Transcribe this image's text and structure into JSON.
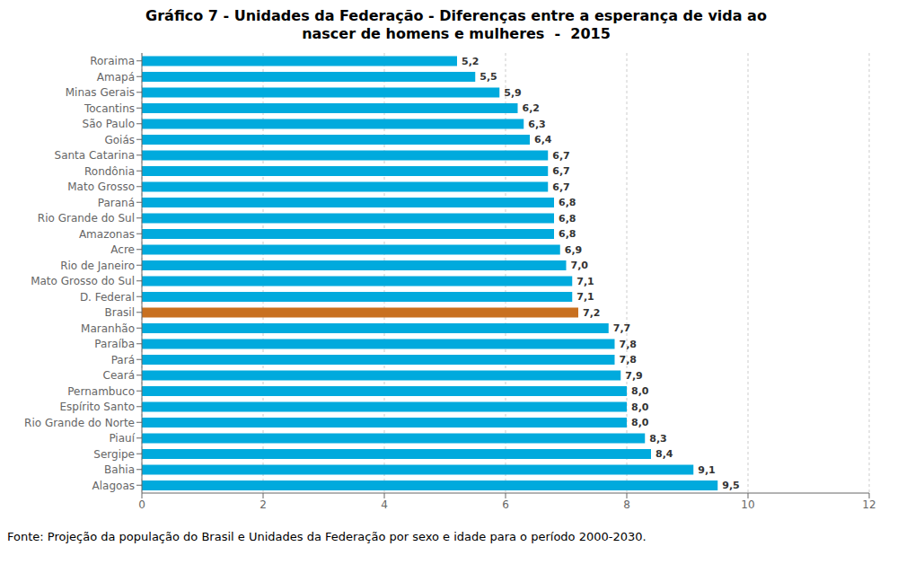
{
  "chart_data": {
    "type": "bar",
    "orientation": "horizontal",
    "title": "Gráfico 7 - Unidades da Federação - Diferenças entre a esperança de vida ao\nnascer de homens e mulheres  -  2015",
    "categories": [
      "Roraima",
      "Amapá",
      "Minas Gerais",
      "Tocantins",
      "São Paulo",
      "Goiás",
      "Santa Catarina",
      "Rondônia",
      "Mato Grosso",
      "Paraná",
      "Rio Grande do Sul",
      "Amazonas",
      "Acre",
      "Rio de Janeiro",
      "Mato Grosso do Sul",
      "D. Federal",
      "Brasil",
      "Maranhão",
      "Paraíba",
      "Pará",
      "Ceará",
      "Pernambuco",
      "Espírito Santo",
      "Rio Grande do Norte",
      "Piauí",
      "Sergipe",
      "Bahia",
      "Alagoas"
    ],
    "values": [
      5.2,
      5.5,
      5.9,
      6.2,
      6.3,
      6.4,
      6.7,
      6.7,
      6.7,
      6.8,
      6.8,
      6.8,
      6.9,
      7.0,
      7.1,
      7.1,
      7.2,
      7.7,
      7.8,
      7.8,
      7.9,
      8.0,
      8.0,
      8.0,
      8.3,
      8.4,
      9.1,
      9.5
    ],
    "value_labels": [
      "5,2",
      "5,5",
      "5,9",
      "6,2",
      "6,3",
      "6,4",
      "6,7",
      "6,7",
      "6,7",
      "6,8",
      "6,8",
      "6,8",
      "6,9",
      "7,0",
      "7,1",
      "7,1",
      "7,2",
      "7,7",
      "7,8",
      "7,8",
      "7,9",
      "8,0",
      "8,0",
      "8,0",
      "8,3",
      "8,4",
      "9,1",
      "9,5"
    ],
    "colors": [
      "#00AADD",
      "#00AADD",
      "#00AADD",
      "#00AADD",
      "#00AADD",
      "#00AADD",
      "#00AADD",
      "#00AADD",
      "#00AADD",
      "#00AADD",
      "#00AADD",
      "#00AADD",
      "#00AADD",
      "#00AADD",
      "#00AADD",
      "#00AADD",
      "#C87020",
      "#00AADD",
      "#00AADD",
      "#00AADD",
      "#00AADD",
      "#00AADD",
      "#00AADD",
      "#00AADD",
      "#00AADD",
      "#00AADD",
      "#00AADD",
      "#00AADD"
    ],
    "xlim": [
      0,
      12
    ],
    "xticks": [
      0,
      2,
      4,
      6,
      8,
      10,
      12
    ],
    "grid": true,
    "data_labels": true,
    "annotations": [
      "Fonte: Projeção da população do Brasil e Unidades da Federação por sexo e idade para o período 2000-2030."
    ]
  }
}
